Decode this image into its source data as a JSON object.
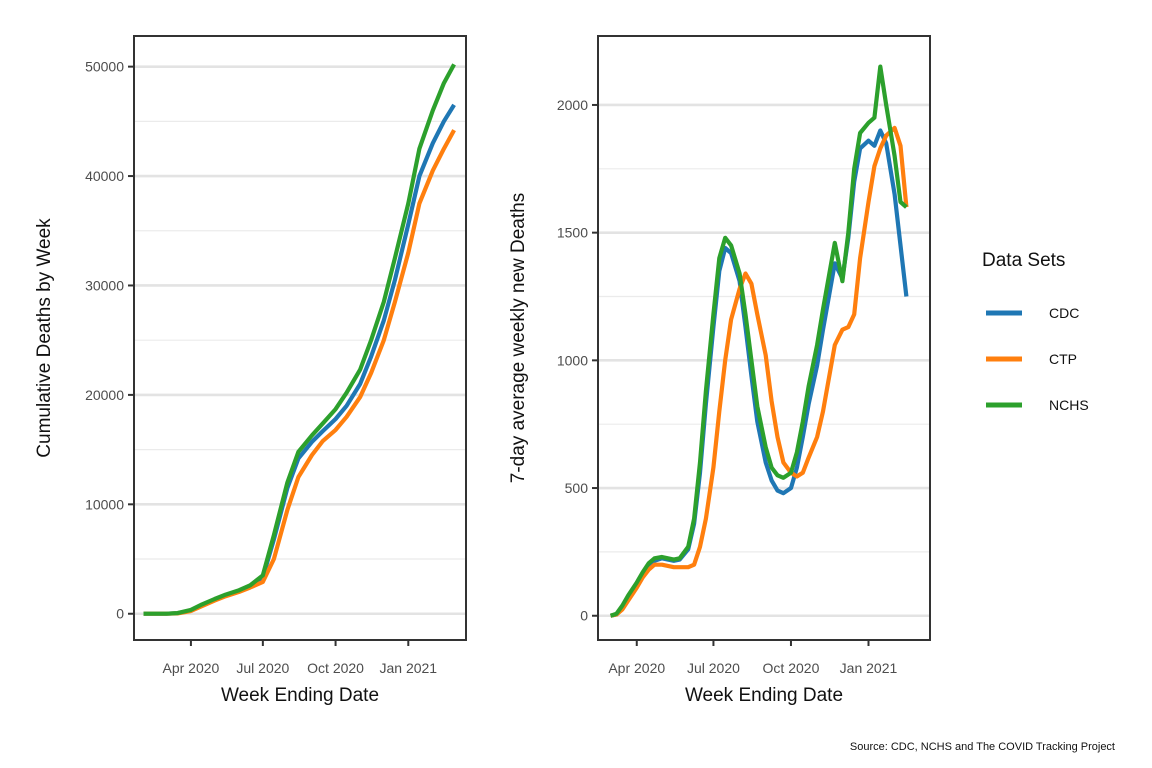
{
  "caption": "Source: CDC, NCHS and The COVID Tracking Project",
  "legend": {
    "title": "Data Sets",
    "items": [
      {
        "label": "CDC",
        "color": "#1f77b4"
      },
      {
        "label": "CTP",
        "color": "#ff7f0e"
      },
      {
        "label": "NCHS",
        "color": "#2ca02c"
      }
    ]
  },
  "chart_data": [
    {
      "type": "line",
      "xlabel": "Week Ending Date",
      "ylabel": "Cumulative Deaths by Week",
      "xlim": [
        "2020-01-20",
        "2021-03-15"
      ],
      "ylim": [
        -2400,
        52800
      ],
      "x_ticks": [
        {
          "date": "2020-04-01",
          "label": "Apr 2020"
        },
        {
          "date": "2020-07-01",
          "label": "Jul 2020"
        },
        {
          "date": "2020-10-01",
          "label": "Oct 2020"
        },
        {
          "date": "2021-01-01",
          "label": "Jan 2021"
        }
      ],
      "y_ticks": [
        0,
        10000,
        20000,
        30000,
        40000,
        50000
      ],
      "y_minor": [
        5000,
        15000,
        25000,
        35000,
        45000
      ],
      "grid": "horizontal",
      "series": [
        {
          "name": "CDC",
          "color": "#1f77b4",
          "x": [
            "2020-02-01",
            "2020-03-01",
            "2020-03-15",
            "2020-04-01",
            "2020-04-15",
            "2020-05-01",
            "2020-05-15",
            "2020-06-01",
            "2020-06-15",
            "2020-07-01",
            "2020-07-15",
            "2020-08-01",
            "2020-08-15",
            "2020-09-01",
            "2020-09-15",
            "2020-10-01",
            "2020-10-15",
            "2020-11-01",
            "2020-11-15",
            "2020-12-01",
            "2020-12-15",
            "2021-01-01",
            "2021-01-15",
            "2021-02-01",
            "2021-02-15",
            "2021-02-28"
          ],
          "y": [
            0,
            0,
            50,
            300,
            800,
            1300,
            1700,
            2100,
            2500,
            3300,
            6800,
            11500,
            14200,
            15700,
            16700,
            17800,
            19000,
            21000,
            23500,
            26800,
            30500,
            35600,
            40000,
            43000,
            45000,
            46500
          ]
        },
        {
          "name": "CTP",
          "color": "#ff7f0e",
          "x": [
            "2020-02-01",
            "2020-03-01",
            "2020-03-15",
            "2020-04-01",
            "2020-04-15",
            "2020-05-01",
            "2020-05-15",
            "2020-06-01",
            "2020-06-15",
            "2020-07-01",
            "2020-07-15",
            "2020-08-01",
            "2020-08-15",
            "2020-09-01",
            "2020-09-15",
            "2020-10-01",
            "2020-10-15",
            "2020-11-01",
            "2020-11-15",
            "2020-12-01",
            "2020-12-15",
            "2021-01-01",
            "2021-01-15",
            "2021-02-01",
            "2021-02-15",
            "2021-02-28"
          ],
          "y": [
            0,
            0,
            30,
            250,
            700,
            1200,
            1600,
            2000,
            2400,
            2900,
            5000,
            9500,
            12500,
            14500,
            15800,
            16800,
            18000,
            19800,
            22000,
            25000,
            28500,
            33000,
            37500,
            40500,
            42500,
            44200
          ]
        },
        {
          "name": "NCHS",
          "color": "#2ca02c",
          "x": [
            "2020-02-01",
            "2020-03-01",
            "2020-03-15",
            "2020-04-01",
            "2020-04-15",
            "2020-05-01",
            "2020-05-15",
            "2020-06-01",
            "2020-06-15",
            "2020-07-01",
            "2020-07-15",
            "2020-08-01",
            "2020-08-15",
            "2020-09-01",
            "2020-09-15",
            "2020-10-01",
            "2020-10-15",
            "2020-11-01",
            "2020-11-15",
            "2020-12-01",
            "2020-12-15",
            "2021-01-01",
            "2021-01-15",
            "2021-02-01",
            "2021-02-15",
            "2021-02-28"
          ],
          "y": [
            0,
            0,
            60,
            350,
            850,
            1350,
            1750,
            2150,
            2600,
            3500,
            7200,
            12000,
            14800,
            16300,
            17400,
            18700,
            20200,
            22300,
            25000,
            28500,
            32500,
            37500,
            42500,
            46000,
            48500,
            50200
          ]
        }
      ]
    },
    {
      "type": "line",
      "xlabel": "Week Ending Date",
      "ylabel": "7-day average weekly new Deaths",
      "xlim": [
        "2020-02-15",
        "2021-03-15"
      ],
      "ylim": [
        -95,
        2270
      ],
      "x_ticks": [
        {
          "date": "2020-04-01",
          "label": "Apr 2020"
        },
        {
          "date": "2020-07-01",
          "label": "Jul 2020"
        },
        {
          "date": "2020-10-01",
          "label": "Oct 2020"
        },
        {
          "date": "2021-01-01",
          "label": "Jan 2021"
        }
      ],
      "y_ticks": [
        0,
        500,
        1000,
        1500,
        2000
      ],
      "y_minor": [
        250,
        750,
        1250,
        1750
      ],
      "grid": "horizontal",
      "series": [
        {
          "name": "CDC",
          "color": "#1f77b4",
          "x": [
            "2020-03-01",
            "2020-03-08",
            "2020-03-15",
            "2020-03-22",
            "2020-04-01",
            "2020-04-08",
            "2020-04-15",
            "2020-04-22",
            "2020-05-01",
            "2020-05-08",
            "2020-05-15",
            "2020-05-22",
            "2020-06-01",
            "2020-06-08",
            "2020-06-15",
            "2020-06-22",
            "2020-07-01",
            "2020-07-08",
            "2020-07-15",
            "2020-07-22",
            "2020-08-01",
            "2020-08-08",
            "2020-08-15",
            "2020-08-22",
            "2020-09-01",
            "2020-09-08",
            "2020-09-15",
            "2020-09-22",
            "2020-10-01",
            "2020-10-08",
            "2020-10-15",
            "2020-10-22",
            "2020-11-01",
            "2020-11-08",
            "2020-11-15",
            "2020-11-22",
            "2020-12-01",
            "2020-12-08",
            "2020-12-15",
            "2020-12-22",
            "2021-01-01",
            "2021-01-08",
            "2021-01-15",
            "2021-01-22",
            "2021-02-01",
            "2021-02-08",
            "2021-02-15"
          ],
          "y": [
            0,
            5,
            30,
            70,
            120,
            160,
            195,
            215,
            225,
            220,
            215,
            220,
            260,
            360,
            560,
            830,
            1130,
            1350,
            1440,
            1420,
            1310,
            1130,
            940,
            760,
            600,
            530,
            490,
            480,
            500,
            580,
            700,
            830,
            980,
            1120,
            1250,
            1380,
            1320,
            1480,
            1700,
            1830,
            1860,
            1840,
            1900,
            1850,
            1650,
            1450,
            1250
          ]
        },
        {
          "name": "CTP",
          "color": "#ff7f0e",
          "x": [
            "2020-03-01",
            "2020-03-08",
            "2020-03-15",
            "2020-03-22",
            "2020-04-01",
            "2020-04-08",
            "2020-04-15",
            "2020-04-22",
            "2020-05-01",
            "2020-05-08",
            "2020-05-15",
            "2020-05-22",
            "2020-06-01",
            "2020-06-08",
            "2020-06-15",
            "2020-06-22",
            "2020-07-01",
            "2020-07-08",
            "2020-07-15",
            "2020-07-22",
            "2020-08-01",
            "2020-08-08",
            "2020-08-15",
            "2020-08-22",
            "2020-09-01",
            "2020-09-08",
            "2020-09-15",
            "2020-09-22",
            "2020-10-01",
            "2020-10-08",
            "2020-10-15",
            "2020-10-22",
            "2020-11-01",
            "2020-11-08",
            "2020-11-15",
            "2020-11-22",
            "2020-12-01",
            "2020-12-08",
            "2020-12-15",
            "2020-12-22",
            "2021-01-01",
            "2021-01-08",
            "2021-01-15",
            "2021-01-22",
            "2021-02-01",
            "2021-02-08",
            "2021-02-15"
          ],
          "y": [
            0,
            5,
            25,
            60,
            110,
            150,
            180,
            200,
            200,
            195,
            190,
            190,
            190,
            200,
            270,
            380,
            580,
            800,
            1000,
            1160,
            1280,
            1340,
            1300,
            1180,
            1020,
            840,
            700,
            600,
            560,
            545,
            560,
            620,
            700,
            800,
            930,
            1060,
            1120,
            1130,
            1180,
            1400,
            1620,
            1760,
            1830,
            1880,
            1910,
            1840,
            1600
          ]
        },
        {
          "name": "NCHS",
          "color": "#2ca02c",
          "x": [
            "2020-03-01",
            "2020-03-08",
            "2020-03-15",
            "2020-03-22",
            "2020-04-01",
            "2020-04-08",
            "2020-04-15",
            "2020-04-22",
            "2020-05-01",
            "2020-05-08",
            "2020-05-15",
            "2020-05-22",
            "2020-06-01",
            "2020-06-08",
            "2020-06-15",
            "2020-06-22",
            "2020-07-01",
            "2020-07-08",
            "2020-07-15",
            "2020-07-22",
            "2020-08-01",
            "2020-08-08",
            "2020-08-15",
            "2020-08-22",
            "2020-09-01",
            "2020-09-08",
            "2020-09-15",
            "2020-09-22",
            "2020-10-01",
            "2020-10-08",
            "2020-10-15",
            "2020-10-22",
            "2020-11-01",
            "2020-11-08",
            "2020-11-15",
            "2020-11-22",
            "2020-12-01",
            "2020-12-08",
            "2020-12-15",
            "2020-12-22",
            "2021-01-01",
            "2021-01-08",
            "2021-01-15",
            "2021-01-22",
            "2021-02-01",
            "2021-02-08",
            "2021-02-15"
          ],
          "y": [
            0,
            8,
            40,
            80,
            130,
            170,
            205,
            225,
            230,
            225,
            220,
            225,
            270,
            380,
            600,
            880,
            1180,
            1400,
            1480,
            1450,
            1340,
            1180,
            1000,
            820,
            660,
            580,
            550,
            540,
            560,
            640,
            760,
            900,
            1060,
            1200,
            1330,
            1460,
            1310,
            1500,
            1750,
            1890,
            1930,
            1950,
            2150,
            2000,
            1800,
            1620,
            1600
          ]
        }
      ]
    }
  ]
}
